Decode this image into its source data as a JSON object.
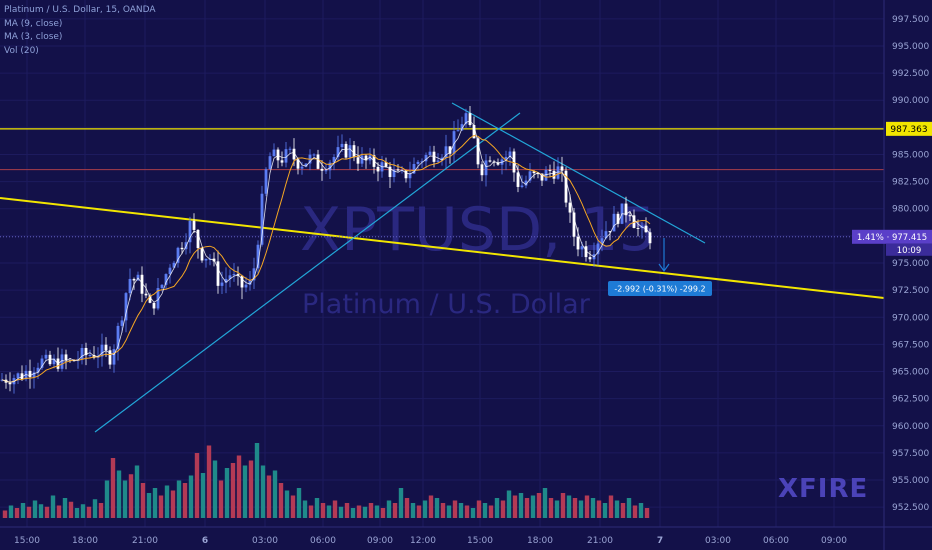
{
  "legend": {
    "symbol": "Platinum / U.S. Dollar, 15, OANDA",
    "ma9": "MA (9, close)",
    "ma3": "MA (3, close)",
    "vol": "Vol (20)"
  },
  "watermark": {
    "ticker": "XPTUSD, 15",
    "name": "Platinum / U.S. Dollar"
  },
  "brand": "XFIRE",
  "price_labels": {
    "resistance": "987.363",
    "last": "1.41% · 977.415",
    "countdown": "10:09"
  },
  "measure_label": "-2.992 (-0.31%) -299.2",
  "colors": {
    "background": "#131149",
    "up_candle": "#5b7cf2",
    "down_candle": "#ffffff",
    "ma9": "#f5a623",
    "ma3": "#ffffff",
    "yellow_line": "#f2e600",
    "trendline": "#22a6d8",
    "red_line": "#a83e4a",
    "vol_up": "#1f8a8a",
    "vol_down": "#b33a55",
    "last_price": "#5a3fc8",
    "measure": "#1e7bd6"
  },
  "chart_data": {
    "type": "candlestick",
    "timeframe": "15",
    "yaxis": {
      "ticks": [
        952.5,
        955.0,
        957.5,
        960.0,
        962.5,
        965.0,
        967.5,
        970.0,
        972.5,
        975.0,
        977.5,
        980.0,
        982.5,
        985.0,
        987.5,
        990.0,
        992.5,
        995.0,
        997.5
      ],
      "tick_labels": [
        "952.500",
        "955.000",
        "957.500",
        "960.000",
        "962.500",
        "965.000",
        "967.500",
        "970.000",
        "972.500",
        "975.000",
        "977.500",
        "980.000",
        "982.500",
        "985.000",
        "987.500",
        "990.000",
        "992.500",
        "995.000",
        "997.500"
      ],
      "range": [
        951.5,
        998.5
      ]
    },
    "xaxis": {
      "tick_labels": [
        "15:00",
        "18:00",
        "21:00",
        "6",
        "03:00",
        "06:00",
        "09:00",
        "12:00",
        "15:00",
        "18:00",
        "21:00",
        "7",
        "03:00",
        "06:00",
        "09:00"
      ]
    },
    "resistance_level": 987.363,
    "red_level": 983.6,
    "last_price": 977.415,
    "price_series": [
      [
        0,
        964.2
      ],
      [
        10,
        964.5
      ],
      [
        20,
        964.6
      ],
      [
        30,
        965.2
      ],
      [
        40,
        966.0
      ],
      [
        50,
        965.6
      ],
      [
        60,
        966.0
      ],
      [
        70,
        965.8
      ],
      [
        80,
        966.4
      ],
      [
        90,
        966.6
      ],
      [
        100,
        966.8
      ],
      [
        110,
        966.4
      ],
      [
        115,
        967.8
      ],
      [
        120,
        969.5
      ],
      [
        125,
        972.0
      ],
      [
        130,
        973.6
      ],
      [
        140,
        973.2
      ],
      [
        150,
        970.8
      ],
      [
        160,
        972.5
      ],
      [
        170,
        975.0
      ],
      [
        180,
        976.5
      ],
      [
        185,
        977.5
      ],
      [
        190,
        978.5
      ],
      [
        195,
        977.5
      ],
      [
        200,
        976.0
      ],
      [
        210,
        975.5
      ],
      [
        220,
        973.0
      ],
      [
        230,
        974.0
      ],
      [
        240,
        972.8
      ],
      [
        250,
        973.0
      ],
      [
        255,
        975.0
      ],
      [
        260,
        979.0
      ],
      [
        265,
        983.0
      ],
      [
        270,
        984.8
      ],
      [
        280,
        984.6
      ],
      [
        290,
        985.0
      ],
      [
        300,
        984.2
      ],
      [
        310,
        984.6
      ],
      [
        320,
        984.0
      ],
      [
        330,
        984.5
      ],
      [
        340,
        985.2
      ],
      [
        350,
        985.5
      ],
      [
        360,
        984.5
      ],
      [
        370,
        984.2
      ],
      [
        380,
        984.0
      ],
      [
        390,
        983.5
      ],
      [
        400,
        982.8
      ],
      [
        410,
        983.5
      ],
      [
        420,
        984.6
      ],
      [
        430,
        985.0
      ],
      [
        440,
        985.3
      ],
      [
        450,
        985.6
      ],
      [
        460,
        987.5
      ],
      [
        465,
        989.0
      ],
      [
        470,
        987.0
      ],
      [
        475,
        986.0
      ],
      [
        480,
        983.5
      ],
      [
        490,
        985.0
      ],
      [
        500,
        984.6
      ],
      [
        510,
        985.0
      ],
      [
        515,
        983.0
      ],
      [
        520,
        982.0
      ],
      [
        530,
        983.0
      ],
      [
        540,
        982.8
      ],
      [
        550,
        983.5
      ],
      [
        560,
        983.6
      ],
      [
        565,
        981.5
      ],
      [
        570,
        979.0
      ],
      [
        575,
        977.2
      ],
      [
        580,
        976.5
      ],
      [
        590,
        976.0
      ],
      [
        600,
        977.5
      ],
      [
        610,
        978.5
      ],
      [
        620,
        979.6
      ],
      [
        630,
        980.0
      ],
      [
        635,
        978.6
      ],
      [
        640,
        977.8
      ],
      [
        645,
        977.6
      ],
      [
        650,
        977.415
      ]
    ],
    "volume": {
      "ylim": [
        0,
        100
      ],
      "x": [
        5,
        11,
        17,
        23,
        29,
        35,
        41,
        47,
        53,
        59,
        65,
        71,
        77,
        83,
        89,
        95,
        101,
        107,
        113,
        119,
        125,
        131,
        137,
        143,
        149,
        155,
        161,
        167,
        173,
        179,
        185,
        191,
        197,
        203,
        209,
        215,
        221,
        227,
        233,
        239,
        245,
        251,
        257,
        263,
        269,
        275,
        281,
        287,
        293,
        299,
        305,
        311,
        317,
        323,
        329,
        335,
        341,
        347,
        353,
        359,
        365,
        371,
        377,
        383,
        389,
        395,
        401,
        407,
        413,
        419,
        425,
        431,
        437,
        443,
        449,
        455,
        461,
        467,
        473,
        479,
        485,
        491,
        497,
        503,
        509,
        515,
        521,
        527,
        533,
        539,
        545,
        551,
        557,
        563,
        569,
        575,
        581,
        587,
        593,
        599,
        605,
        611,
        617,
        623,
        629,
        635,
        641,
        647
      ],
      "values": [
        6,
        10,
        8,
        12,
        9,
        14,
        11,
        9,
        18,
        10,
        16,
        13,
        8,
        11,
        9,
        15,
        12,
        30,
        48,
        38,
        30,
        35,
        42,
        28,
        20,
        24,
        18,
        26,
        22,
        30,
        28,
        34,
        52,
        36,
        58,
        46,
        30,
        40,
        44,
        50,
        42,
        46,
        60,
        42,
        34,
        38,
        28,
        22,
        18,
        24,
        14,
        10,
        16,
        12,
        10,
        14,
        9,
        12,
        8,
        10,
        9,
        12,
        10,
        8,
        14,
        12,
        24,
        16,
        12,
        10,
        14,
        18,
        16,
        12,
        10,
        14,
        12,
        10,
        8,
        14,
        12,
        10,
        16,
        14,
        22,
        18,
        20,
        16,
        18,
        20,
        24,
        16,
        14,
        20,
        18,
        16,
        14,
        18,
        16,
        14,
        12,
        18,
        14,
        12,
        16,
        10,
        12,
        8
      ],
      "directions": [
        "d",
        "u",
        "d",
        "u",
        "d",
        "u",
        "u",
        "d",
        "u",
        "d",
        "u",
        "d",
        "u",
        "u",
        "d",
        "u",
        "d",
        "u",
        "d",
        "u",
        "u",
        "d",
        "u",
        "d",
        "u",
        "u",
        "d",
        "u",
        "d",
        "u",
        "d",
        "u",
        "d",
        "u",
        "d",
        "u",
        "d",
        "u",
        "d",
        "d",
        "u",
        "d",
        "u",
        "u",
        "d",
        "u",
        "d",
        "u",
        "d",
        "u",
        "u",
        "d",
        "u",
        "d",
        "u",
        "d",
        "u",
        "d",
        "u",
        "d",
        "u",
        "d",
        "u",
        "d",
        "u",
        "d",
        "u",
        "d",
        "u",
        "d",
        "u",
        "d",
        "u",
        "d",
        "u",
        "d",
        "u",
        "d",
        "u",
        "d",
        "u",
        "d",
        "u",
        "d",
        "u",
        "d",
        "u",
        "d",
        "u",
        "d",
        "u",
        "d",
        "u",
        "d",
        "u",
        "d",
        "u",
        "d",
        "u",
        "d",
        "u",
        "d",
        "u",
        "d",
        "u",
        "d",
        "u",
        "d"
      ]
    }
  }
}
